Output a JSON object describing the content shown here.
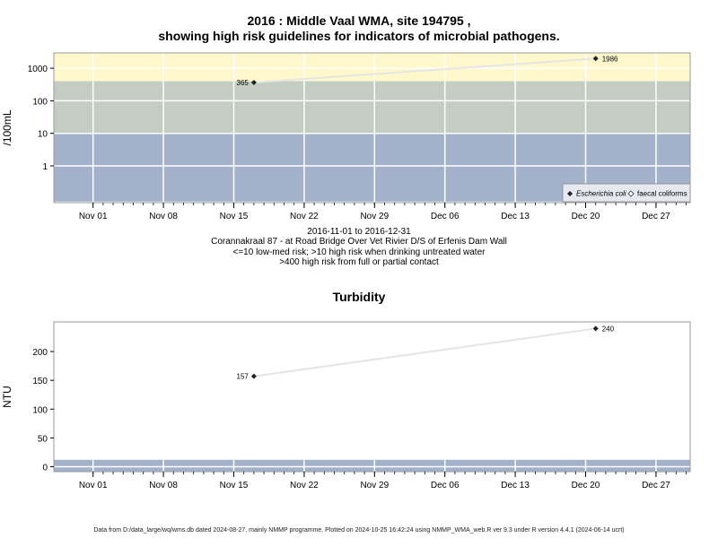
{
  "figure_title_line1": "2016 : Middle Vaal WMA, site 194795 ,",
  "figure_title_line2": "showing high risk guidelines for indicators of microbial pathogens.",
  "captions": {
    "date_range": "2016-11-01 to 2016-12-31",
    "site": "Corannakraal 87 - at Road Bridge Over Vet Rivier D/S of Erfenis Dam Wall",
    "guideline1": "<=10 low-med risk; >10 high risk when drinking untreated water",
    "guideline2": ">400 high risk from full or partial contact"
  },
  "footer": "Data from D:/data_large/wq/wms.db dated 2024-08-27, mainly NMMP programme. Plotted on 2024-10-25 16:42:24 using NMMP_WMA_web.R ver 9.3 under R version 4.4.1 (2024-06-14 ucrt)",
  "colors": {
    "high_contact_band": "#fff8cc",
    "high_drink_band": "#c4cdc2",
    "low_band": "#a3b2ca",
    "turbidity_bg": "#fde0fd",
    "line": "#e5e5e5",
    "point": "#222222",
    "grid": "#ffffff"
  },
  "chart_data": [
    {
      "type": "line",
      "title": "",
      "ylabel": "/100mL",
      "yscale": "log",
      "x_tick_labels": [
        "Nov 01",
        "Nov 08",
        "Nov 15",
        "Nov 22",
        "Nov 29",
        "Dec 06",
        "Dec 13",
        "Dec 20",
        "Dec 27"
      ],
      "y_tick_labels": [
        "1",
        "10",
        "100",
        "1000"
      ],
      "bands": [
        {
          "from": 400,
          "to": 3000,
          "color": "#fff8cc"
        },
        {
          "from": 10,
          "to": 400,
          "color": "#c4cdc2"
        },
        {
          "from": 0.08,
          "to": 10,
          "color": "#a3b2ca"
        }
      ],
      "series": [
        {
          "name": "Escherichia coli",
          "marker": "filled-diamond",
          "x": [
            "2016-11-17",
            "2016-12-21"
          ],
          "y": [
            365,
            1986
          ],
          "labels": [
            "365",
            "1986"
          ]
        }
      ],
      "legend": {
        "position": "bottom-right",
        "entries": [
          {
            "label": "Escherichia coli",
            "marker": "filled-diamond"
          },
          {
            "label": "faecal coliforms",
            "marker": "open-diamond"
          }
        ]
      }
    },
    {
      "type": "line",
      "title": "Turbidity",
      "ylabel": "NTU",
      "x_tick_labels": [
        "Nov 01",
        "Nov 08",
        "Nov 15",
        "Nov 22",
        "Nov 29",
        "Dec 06",
        "Dec 13",
        "Dec 20",
        "Dec 27"
      ],
      "y_tick_labels": [
        "0",
        "50",
        "100",
        "150",
        "200"
      ],
      "ylim": [
        -8,
        252
      ],
      "bands": [
        {
          "from": -8,
          "to": 12,
          "color": "#a3b2ca"
        }
      ],
      "series": [
        {
          "marker": "filled-diamond",
          "x": [
            "2016-11-17",
            "2016-12-21"
          ],
          "y": [
            157,
            240
          ],
          "labels": [
            "157",
            "240"
          ]
        }
      ]
    }
  ]
}
